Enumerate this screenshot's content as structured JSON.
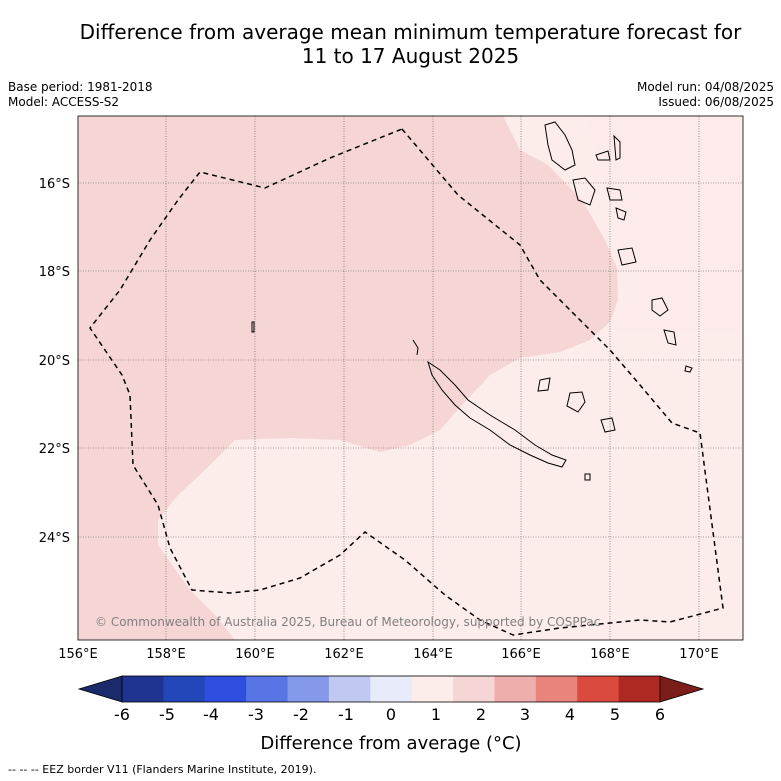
{
  "header": {
    "title_line1": "Difference from average mean minimum temperature forecast for",
    "title_line2": "11 to 17 August 2025",
    "base_period": "Base period: 1981-2018",
    "model": "Model: ACCESS-S2",
    "model_run": "Model run: 04/08/2025",
    "issued": "Issued: 06/08/2025"
  },
  "map": {
    "lon_ticks": [
      "156°E",
      "158°E",
      "160°E",
      "162°E",
      "164°E",
      "166°E",
      "168°E",
      "170°E"
    ],
    "lat_ticks": [
      "16°S",
      "18°S",
      "20°S",
      "22°S",
      "24°S"
    ],
    "copyright": "© Commonwealth of Australia 2025, Bureau of Meteorology, supported by COSPPac",
    "regions": [
      {
        "label": "0 to 1",
        "color": "#fcecea"
      },
      {
        "label": "1 to 2",
        "color": "#f5d6d5"
      }
    ],
    "eez_border_style": "dashed"
  },
  "colorbar": {
    "ticks": [
      "-6",
      "-5",
      "-4",
      "-3",
      "-2",
      "-1",
      "0",
      "1",
      "2",
      "3",
      "4",
      "5",
      "6"
    ],
    "colors": [
      "#1f3391",
      "#2346b8",
      "#2f4ddf",
      "#5875e6",
      "#8499ea",
      "#c1c8f2",
      "#e8ebf9",
      "#fcecea",
      "#f5d6d5",
      "#eeaeab",
      "#e8847c",
      "#db4a3e",
      "#ae2922"
    ],
    "under_color": "#1a2a6c",
    "over_color": "#7b1e1a",
    "title": "Difference from average (°C)"
  },
  "footnote": "--  --  -- EEZ border V11 (Flanders Marine Institute, 2019)."
}
